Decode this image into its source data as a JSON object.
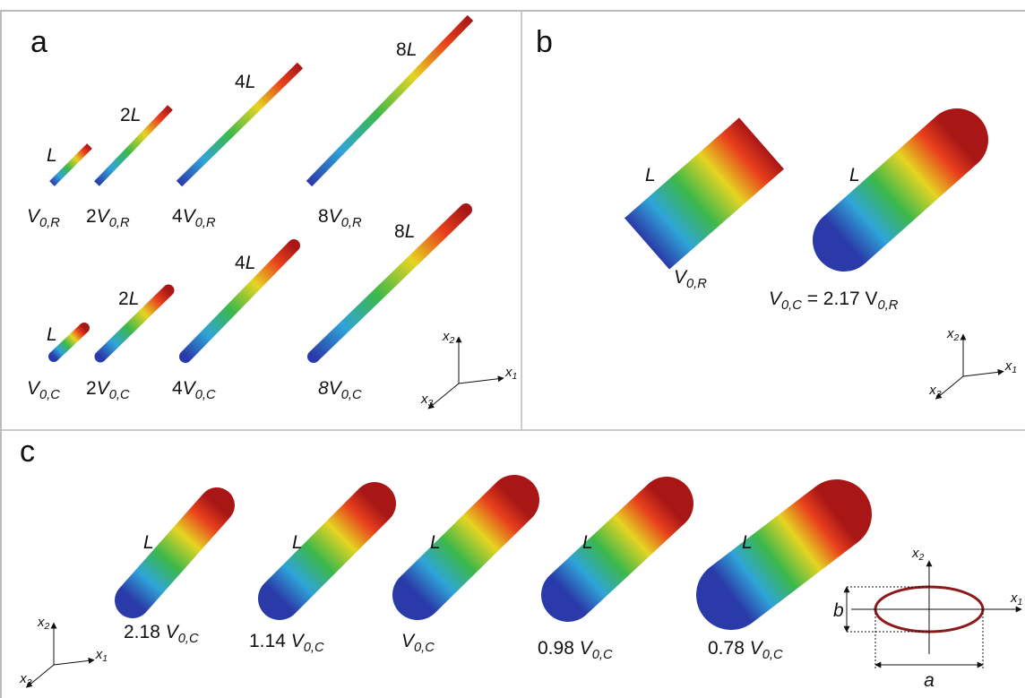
{
  "panels": [
    {
      "letter": "a",
      "rods": [
        {
          "length_label": [
            {
              "text": "L",
              "style": "italic"
            }
          ],
          "volume_label": [
            {
              "text": "V",
              "style": "italic"
            },
            {
              "text": "0,R",
              "style": "sub"
            }
          ]
        },
        {
          "length_label": [
            {
              "text": "2",
              "style": "normal"
            },
            {
              "text": "L",
              "style": "italic"
            }
          ],
          "volume_label": [
            {
              "text": "2",
              "style": "normal"
            },
            {
              "text": "V",
              "style": "italic"
            },
            {
              "text": "0,R",
              "style": "sub"
            }
          ]
        },
        {
          "length_label": [
            {
              "text": "4",
              "style": "normal"
            },
            {
              "text": "L",
              "style": "italic"
            }
          ],
          "volume_label": [
            {
              "text": "4",
              "style": "normal"
            },
            {
              "text": "V",
              "style": "italic"
            },
            {
              "text": "0,R",
              "style": "sub"
            }
          ]
        },
        {
          "length_label": [
            {
              "text": "8",
              "style": "normal"
            },
            {
              "text": "L",
              "style": "italic"
            }
          ],
          "volume_label": [
            {
              "text": "8",
              "style": "normal"
            },
            {
              "text": "V",
              "style": "italic"
            },
            {
              "text": "0,R",
              "style": "sub"
            }
          ]
        },
        {
          "length_label": [
            {
              "text": "L",
              "style": "italic"
            }
          ],
          "volume_label": [
            {
              "text": "V",
              "style": "italic"
            },
            {
              "text": "0,C",
              "style": "sub"
            }
          ]
        },
        {
          "length_label": [
            {
              "text": "2",
              "style": "normal"
            },
            {
              "text": "L",
              "style": "italic"
            }
          ],
          "volume_label": [
            {
              "text": "2",
              "style": "normal"
            },
            {
              "text": "V",
              "style": "italic"
            },
            {
              "text": "0,C",
              "style": "sub"
            }
          ]
        },
        {
          "length_label": [
            {
              "text": "4",
              "style": "normal"
            },
            {
              "text": "L",
              "style": "italic"
            }
          ],
          "volume_label": [
            {
              "text": "4",
              "style": "normal"
            },
            {
              "text": "V",
              "style": "italic"
            },
            {
              "text": "0,C",
              "style": "sub"
            }
          ]
        },
        {
          "length_label": [
            {
              "text": "8",
              "style": "normal"
            },
            {
              "text": "L",
              "style": "italic"
            }
          ],
          "volume_label": [
            {
              "text": "8",
              "style": "italic"
            },
            {
              "text": "V",
              "style": "italic"
            },
            {
              "text": "0,C",
              "style": "sub"
            }
          ]
        }
      ],
      "axes": {
        "x1": [
          {
            "text": "x",
            "style": "italic"
          },
          {
            "text": "1",
            "style": "sub"
          }
        ],
        "x2": [
          {
            "text": "x",
            "style": "italic"
          },
          {
            "text": "2",
            "style": "sub"
          }
        ],
        "x3": [
          {
            "text": "x",
            "style": "italic"
          },
          {
            "text": "3",
            "style": "sub"
          }
        ]
      }
    },
    {
      "letter": "b",
      "rods": [
        {
          "length_label": [
            {
              "text": "L",
              "style": "italic"
            }
          ],
          "volume_label": [
            {
              "text": "V",
              "style": "italic"
            },
            {
              "text": "0,R",
              "style": "sub"
            }
          ]
        },
        {
          "length_label": [
            {
              "text": "L",
              "style": "italic"
            }
          ],
          "volume_label": [
            {
              "text": "V",
              "style": "italic"
            },
            {
              "text": "0,C",
              "style": "sub"
            },
            {
              "text": " = 2.17 V",
              "style": "normal"
            },
            {
              "text": "0,R",
              "style": "sub"
            }
          ]
        }
      ],
      "axes": {
        "x1": [
          {
            "text": "x",
            "style": "italic"
          },
          {
            "text": "1",
            "style": "sub"
          }
        ],
        "x2": [
          {
            "text": "x",
            "style": "italic"
          },
          {
            "text": "2",
            "style": "sub"
          }
        ],
        "x3": [
          {
            "text": "x",
            "style": "italic"
          },
          {
            "text": "3",
            "style": "sub"
          }
        ]
      }
    },
    {
      "letter": "c",
      "rods": [
        {
          "length_label": [
            {
              "text": "L",
              "style": "italic"
            }
          ],
          "volume_label": [
            {
              "text": "2.18 ",
              "style": "normal"
            },
            {
              "text": "V",
              "style": "italic"
            },
            {
              "text": "0,C",
              "style": "sub"
            }
          ]
        },
        {
          "length_label": [
            {
              "text": "L",
              "style": "italic"
            }
          ],
          "volume_label": [
            {
              "text": "1.14 ",
              "style": "normal"
            },
            {
              "text": "V",
              "style": "italic"
            },
            {
              "text": "0,C",
              "style": "sub"
            }
          ]
        },
        {
          "length_label": [
            {
              "text": "L",
              "style": "italic"
            }
          ],
          "volume_label": [
            {
              "text": "V",
              "style": "italic"
            },
            {
              "text": "0,C",
              "style": "sub"
            }
          ]
        },
        {
          "length_label": [
            {
              "text": "L",
              "style": "italic"
            }
          ],
          "volume_label": [
            {
              "text": "0.98 ",
              "style": "normal"
            },
            {
              "text": "V",
              "style": "italic"
            },
            {
              "text": "0,C",
              "style": "sub"
            }
          ]
        },
        {
          "length_label": [
            {
              "text": "L",
              "style": "italic"
            }
          ],
          "volume_label": [
            {
              "text": "0.78 ",
              "style": "normal"
            },
            {
              "text": "V",
              "style": "italic"
            },
            {
              "text": "0,C",
              "style": "sub"
            }
          ]
        }
      ],
      "axes": {
        "x1": [
          {
            "text": "x",
            "style": "italic"
          },
          {
            "text": "1",
            "style": "sub"
          }
        ],
        "x2": [
          {
            "text": "x",
            "style": "italic"
          },
          {
            "text": "2",
            "style": "sub"
          }
        ],
        "x3": [
          {
            "text": "x",
            "style": "italic"
          },
          {
            "text": "3",
            "style": "sub"
          }
        ]
      },
      "ellipse": {
        "a": [
          {
            "text": "a",
            "style": "italic"
          }
        ],
        "b": [
          {
            "text": "b",
            "style": "italic"
          }
        ],
        "x1": [
          {
            "text": "x",
            "style": "italic"
          },
          {
            "text": "1",
            "style": "sub"
          }
        ],
        "x2": [
          {
            "text": "x",
            "style": "italic"
          },
          {
            "text": "2",
            "style": "sub"
          }
        ]
      }
    }
  ]
}
